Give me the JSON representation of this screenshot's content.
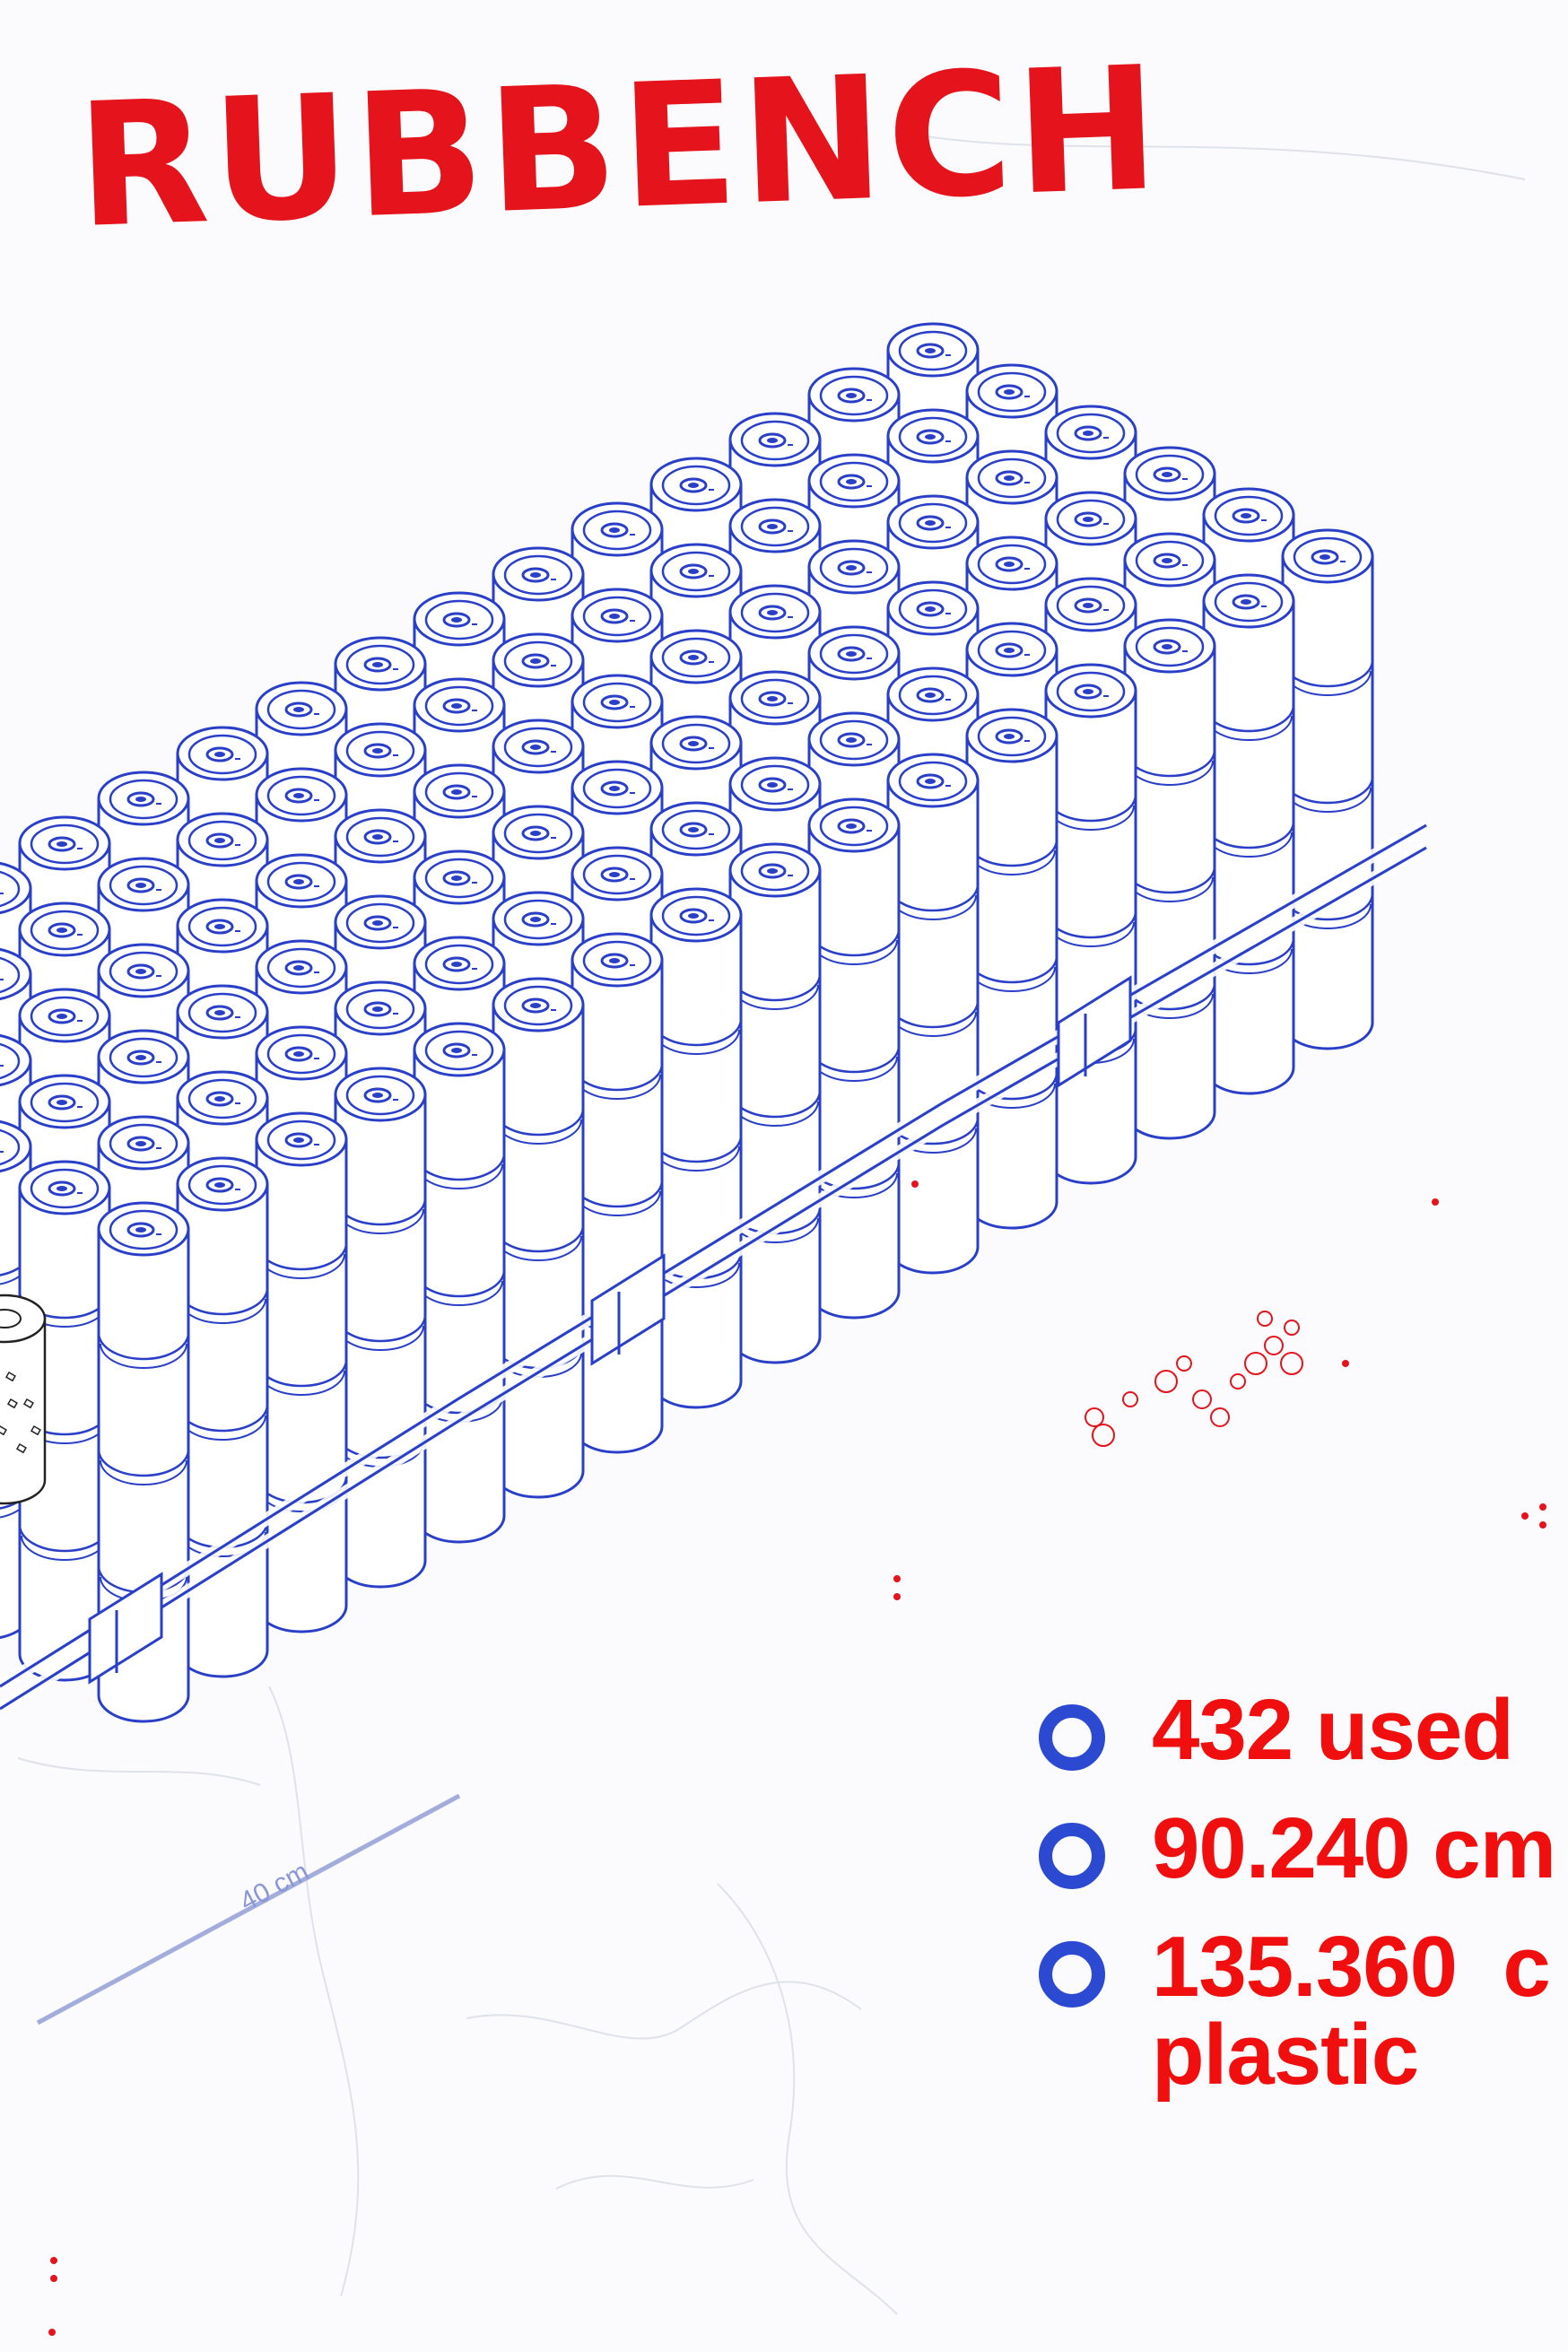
{
  "title": "RUBBENCH",
  "dimension": {
    "label": "40 cm"
  },
  "stats": [
    {
      "text": "432 used"
    },
    {
      "text": "90.240 cm"
    },
    {
      "text": "135.360  c\nplastic"
    }
  ],
  "colors": {
    "title_red": "#e4131c",
    "stat_red": "#f00e0e",
    "bullet_blue": "#2c4ad1",
    "line_blue": "#2a3fc7",
    "dim_line": "#a2acdd",
    "background": "#fbfbfd"
  },
  "icons": {
    "bullet": "ring-bullet-icon",
    "can": "soda-can-icon"
  }
}
